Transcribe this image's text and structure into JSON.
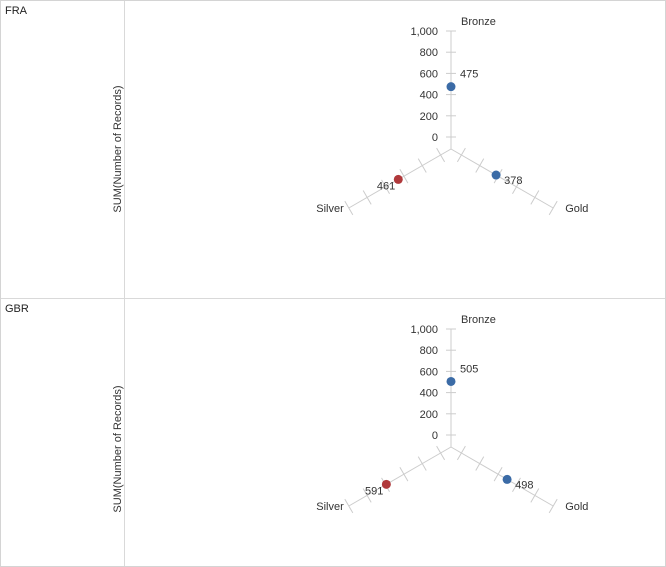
{
  "y_axis_label": "SUM(Number of Records)",
  "colors": {
    "blue": "#3b6ba6",
    "red": "#b0393b",
    "axis": "#cccccc",
    "text": "#333333"
  },
  "chart_data": [
    {
      "type": "radar",
      "panel": "FRA",
      "axes": [
        "Bronze",
        "Gold",
        "Silver"
      ],
      "tick_labels": [
        "1,000",
        "800",
        "600",
        "400",
        "200",
        "0"
      ],
      "ticks": [
        1000,
        800,
        600,
        400,
        200,
        0
      ],
      "range": [
        0,
        1000
      ],
      "points": [
        {
          "axis": "Bronze",
          "value": 475,
          "label": "475",
          "color": "blue"
        },
        {
          "axis": "Gold",
          "value": 378,
          "label": "378",
          "color": "blue"
        },
        {
          "axis": "Silver",
          "value": 461,
          "label": "461",
          "color": "red"
        }
      ]
    },
    {
      "type": "radar",
      "panel": "GBR",
      "axes": [
        "Bronze",
        "Gold",
        "Silver"
      ],
      "tick_labels": [
        "1,000",
        "800",
        "600",
        "400",
        "200",
        "0"
      ],
      "ticks": [
        1000,
        800,
        600,
        400,
        200,
        0
      ],
      "range": [
        0,
        1000
      ],
      "points": [
        {
          "axis": "Bronze",
          "value": 505,
          "label": "505",
          "color": "blue"
        },
        {
          "axis": "Gold",
          "value": 498,
          "label": "498",
          "color": "blue"
        },
        {
          "axis": "Silver",
          "value": 591,
          "label": "591",
          "color": "red"
        }
      ]
    }
  ]
}
